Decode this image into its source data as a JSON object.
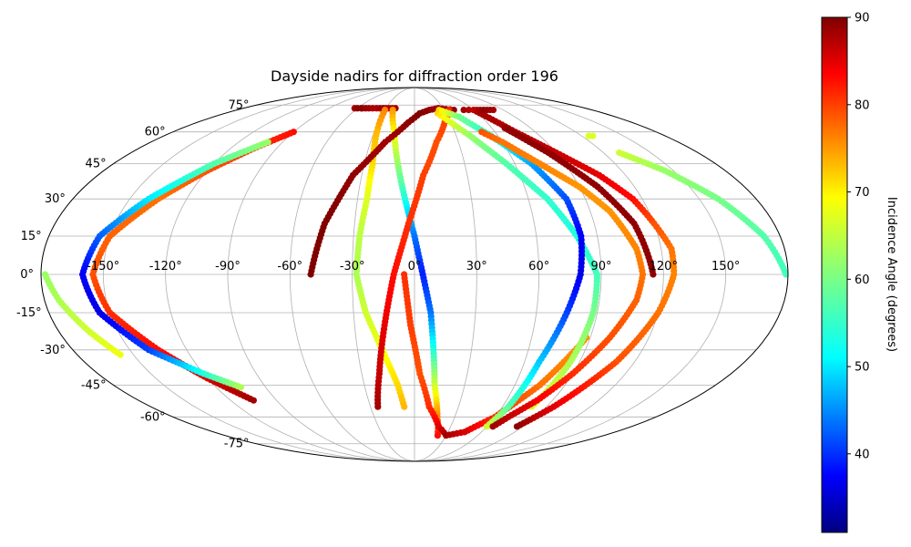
{
  "chart_data": {
    "type": "scatter",
    "projection": "mollweide",
    "title": "Dayside nadirs for diffraction order 196",
    "grid": true,
    "xticks": [
      -150,
      -120,
      -90,
      -60,
      -30,
      0,
      30,
      60,
      90,
      120,
      150
    ],
    "xtick_labels": [
      "-150°",
      "-120°",
      "-90°",
      "-60°",
      "-30°",
      "0°",
      "30°",
      "60°",
      "90°",
      "120°",
      "150°"
    ],
    "yticks": [
      -75,
      -60,
      -45,
      -30,
      -15,
      0,
      15,
      30,
      45,
      60,
      75
    ],
    "ytick_labels": [
      "-75°",
      "-60°",
      "-45°",
      "-30°",
      "-15°",
      "0°",
      "15°",
      "30°",
      "45°",
      "60°",
      "75°"
    ],
    "colorbar": {
      "label": "Incidence Angle (degrees)",
      "colormap": "jet",
      "range": [
        31,
        90
      ],
      "ticks": [
        40,
        50,
        60,
        70,
        80,
        90
      ]
    },
    "series": [
      {
        "x": [
          -90,
          -105,
          -120,
          -135,
          -150,
          -155,
          -150,
          -135,
          -120,
          -105
        ],
        "y": [
          60,
          52,
          42,
          30,
          15,
          0,
          -15,
          -30,
          -42,
          -52
        ],
        "c": [
          82,
          80,
          78,
          76,
          77,
          78,
          80,
          82,
          85,
          88
        ]
      },
      {
        "x": [
          -100,
          -120,
          -140,
          -155,
          -160,
          -155,
          -140,
          -120,
          -105
        ],
        "y": [
          55,
          45,
          30,
          15,
          0,
          -15,
          -30,
          -40,
          -46
        ],
        "c": [
          62,
          58,
          52,
          44,
          38,
          37,
          42,
          55,
          63
        ]
      },
      {
        "x": [
          -178,
          -173,
          -165,
          -157
        ],
        "y": [
          0,
          -10,
          -22,
          -32
        ],
        "c": [
          62,
          63,
          65,
          67
        ]
      },
      {
        "x": [
          -63,
          -60,
          -56,
          -55,
          -48,
          -40,
          -33,
          -27,
          -20
        ],
        "y": [
          73,
          73,
          73,
          73,
          73,
          73,
          73,
          73,
          73
        ],
        "c": [
          88,
          89,
          90,
          89,
          88,
          87,
          89,
          87,
          88
        ]
      },
      {
        "x": [
          -30,
          -28,
          -25,
          -25,
          -27,
          -28,
          -24,
          -17,
          -10,
          -7
        ],
        "y": [
          72,
          60,
          45,
          30,
          15,
          0,
          -15,
          -30,
          -45,
          -55
        ],
        "c": [
          75,
          72,
          70,
          66,
          64,
          63,
          65,
          67,
          70,
          72
        ]
      },
      {
        "x": [
          -22,
          -15,
          -10,
          -5,
          0,
          4,
          8,
          10,
          12,
          17,
          22
        ],
        "y": [
          72,
          60,
          45,
          30,
          15,
          0,
          -15,
          -30,
          -45,
          -60,
          -70
        ],
        "c": [
          74,
          68,
          62,
          55,
          45,
          40,
          45,
          55,
          65,
          75,
          82
        ]
      },
      {
        "x": [
          -50,
          -45,
          -35,
          -20,
          -5,
          5,
          15,
          25,
          40
        ],
        "y": [
          0,
          20,
          40,
          55,
          65,
          70,
          72,
          73,
          72
        ],
        "c": [
          90,
          90,
          89,
          88,
          89,
          90,
          89,
          88,
          89
        ]
      },
      {
        "x": [
          -25,
          -20,
          -15,
          -10,
          -3,
          5,
          15,
          25,
          35
        ],
        "y": [
          -55,
          -40,
          -20,
          0,
          20,
          40,
          55,
          65,
          72
        ],
        "c": [
          88,
          86,
          84,
          82,
          80,
          79,
          78,
          79,
          80
        ]
      },
      {
        "x": [
          -5,
          -2,
          3,
          10,
          20,
          30,
          45,
          60,
          75,
          88
        ],
        "y": [
          0,
          -20,
          -40,
          -55,
          -65,
          -70,
          -68,
          -60,
          -45,
          -25
        ],
        "c": [
          80,
          79,
          78,
          80,
          84,
          88,
          85,
          80,
          76,
          74
        ]
      },
      {
        "x": [
          22,
          30,
          40,
          55,
          70,
          80,
          88,
          88,
          85,
          80
        ],
        "y": [
          70,
          65,
          58,
          45,
          30,
          15,
          0,
          -15,
          -35,
          -55
        ],
        "c": [
          70,
          66,
          62,
          58,
          56,
          55,
          57,
          60,
          63,
          66
        ]
      },
      {
        "x": [
          25,
          40,
          55,
          70,
          80,
          82,
          80,
          75,
          68,
          64,
          60
        ],
        "y": [
          72,
          68,
          58,
          45,
          30,
          15,
          0,
          -15,
          -35,
          -55,
          -65
        ],
        "c": [
          70,
          60,
          55,
          48,
          43,
          38,
          37,
          42,
          50,
          58,
          65
        ]
      },
      {
        "x": [
          50,
          60,
          75,
          90,
          100,
          108,
          110,
          108,
          100,
          90,
          80,
          70,
          65
        ],
        "y": [
          60,
          55,
          45,
          35,
          25,
          10,
          0,
          -10,
          -25,
          -40,
          -52,
          -60,
          -65
        ],
        "c": [
          78,
          76,
          75,
          74,
          74,
          75,
          76,
          77,
          78,
          80,
          83,
          86,
          88
        ]
      },
      {
        "x": [
          60,
          75,
          90,
          105,
          115,
          120,
          125,
          125,
          120,
          110,
          95,
          85
        ],
        "y": [
          72,
          60,
          50,
          40,
          30,
          20,
          10,
          0,
          -15,
          -35,
          -55,
          -65
        ],
        "c": [
          88,
          87,
          86,
          84,
          82,
          78,
          76,
          75,
          76,
          78,
          84,
          89
        ]
      },
      {
        "x": [
          70,
          85,
          100,
          110,
          115
        ],
        "y": [
          62,
          50,
          35,
          20,
          0
        ],
        "c": [
          89,
          89,
          89,
          89,
          89
        ]
      },
      {
        "x": [
          50,
          55,
          60,
          70,
          80
        ],
        "y": [
          72,
          72,
          72,
          72,
          72
        ],
        "c": [
          88,
          87,
          86,
          89,
          88
        ]
      },
      {
        "x": [
          130,
          145,
          160,
          172,
          179
        ],
        "y": [
          50,
          42,
          30,
          15,
          0
        ],
        "c": [
          65,
          62,
          60,
          58,
          57
        ]
      },
      {
        "x": [
          125,
          128
        ],
        "y": [
          58,
          58
        ],
        "c": [
          66,
          66
        ]
      }
    ]
  }
}
